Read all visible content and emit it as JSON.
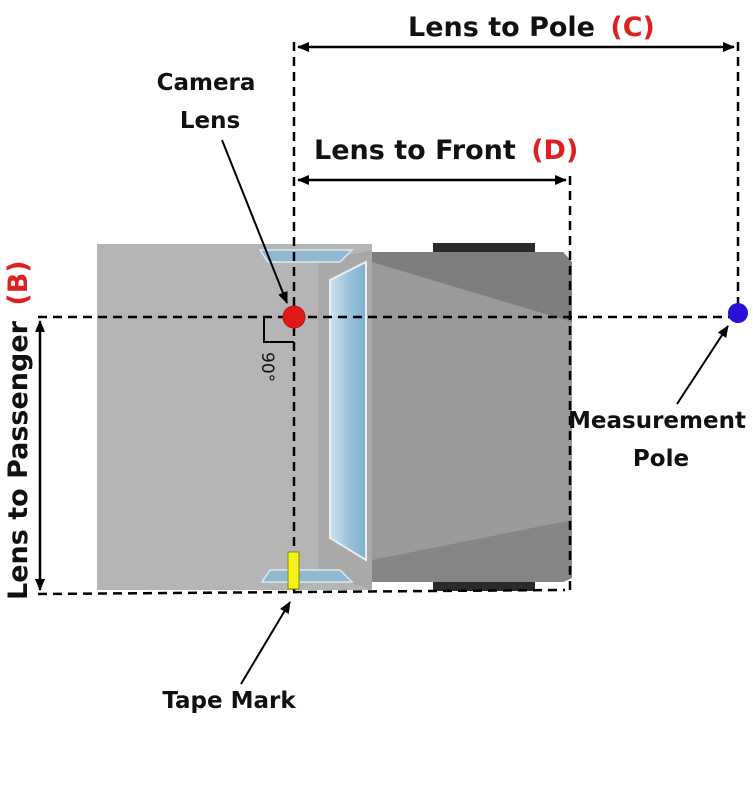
{
  "labels": {
    "lens_to_pole": "Lens to Pole",
    "lens_to_pole_code": "(C)",
    "lens_to_front": "Lens to Front",
    "lens_to_front_code": "(D)",
    "lens_to_passenger": "Lens to Passenger",
    "lens_to_passenger_code": "(B)",
    "camera_lens_line1": "Camera",
    "camera_lens_line2": "Lens",
    "measurement_pole_line1": "Measurement",
    "measurement_pole_line2": "Pole",
    "tape_mark": "Tape Mark",
    "angle": "90°"
  },
  "colors": {
    "code_red": "#e02020",
    "lens_dot": "#e01818",
    "pole_dot": "#2a10d8",
    "tape": "#f2f21a",
    "body_rear": "#b5b5b5",
    "body_front": "#9a9a9a",
    "glass": "#9cc3db"
  }
}
